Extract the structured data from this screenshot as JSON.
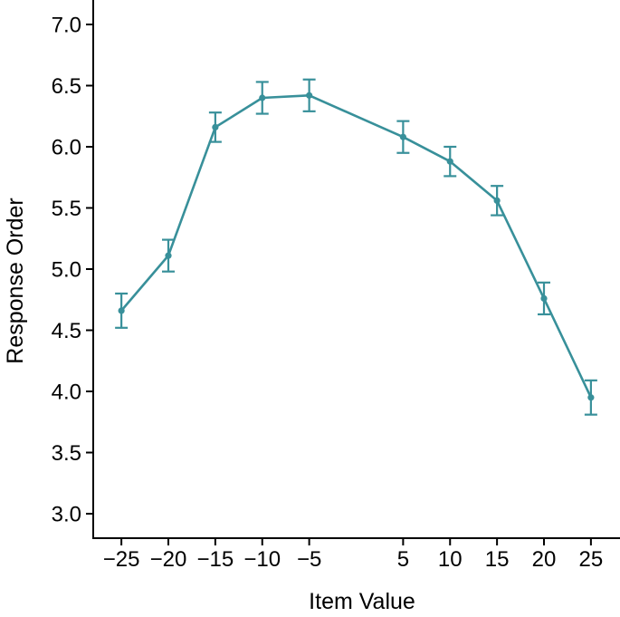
{
  "chart_data": {
    "type": "line",
    "title": "",
    "xlabel": "Item Value",
    "ylabel": "Response Order",
    "x": [
      -25,
      -20,
      -15,
      -10,
      -5,
      5,
      10,
      15,
      20,
      25
    ],
    "series": [
      {
        "name": "Response Order",
        "values": [
          4.66,
          5.11,
          6.16,
          6.4,
          6.42,
          6.08,
          5.88,
          5.56,
          4.76,
          3.95
        ],
        "errors": [
          0.14,
          0.13,
          0.12,
          0.13,
          0.13,
          0.13,
          0.12,
          0.12,
          0.13,
          0.14
        ]
      }
    ],
    "xlim": [
      -28,
      28
    ],
    "ylim": [
      2.8,
      7.2
    ],
    "xticks": [
      -25,
      -20,
      -15,
      -10,
      -5,
      5,
      10,
      15,
      20,
      25
    ],
    "xtick_labels": [
      "−25",
      "−20",
      "−15",
      "−10",
      "−5",
      "5",
      "10",
      "15",
      "20",
      "25"
    ],
    "yticks": [
      3.0,
      3.5,
      4.0,
      4.5,
      5.0,
      5.5,
      6.0,
      6.5,
      7.0
    ],
    "ytick_labels": [
      "3.0",
      "3.5",
      "4.0",
      "4.5",
      "5.0",
      "5.5",
      "6.0",
      "6.5",
      "7.0"
    ],
    "grid": false,
    "legend": "none",
    "line_color": "#38909A",
    "axis_color": "#000000",
    "marker": "circle-with-error-bars"
  }
}
